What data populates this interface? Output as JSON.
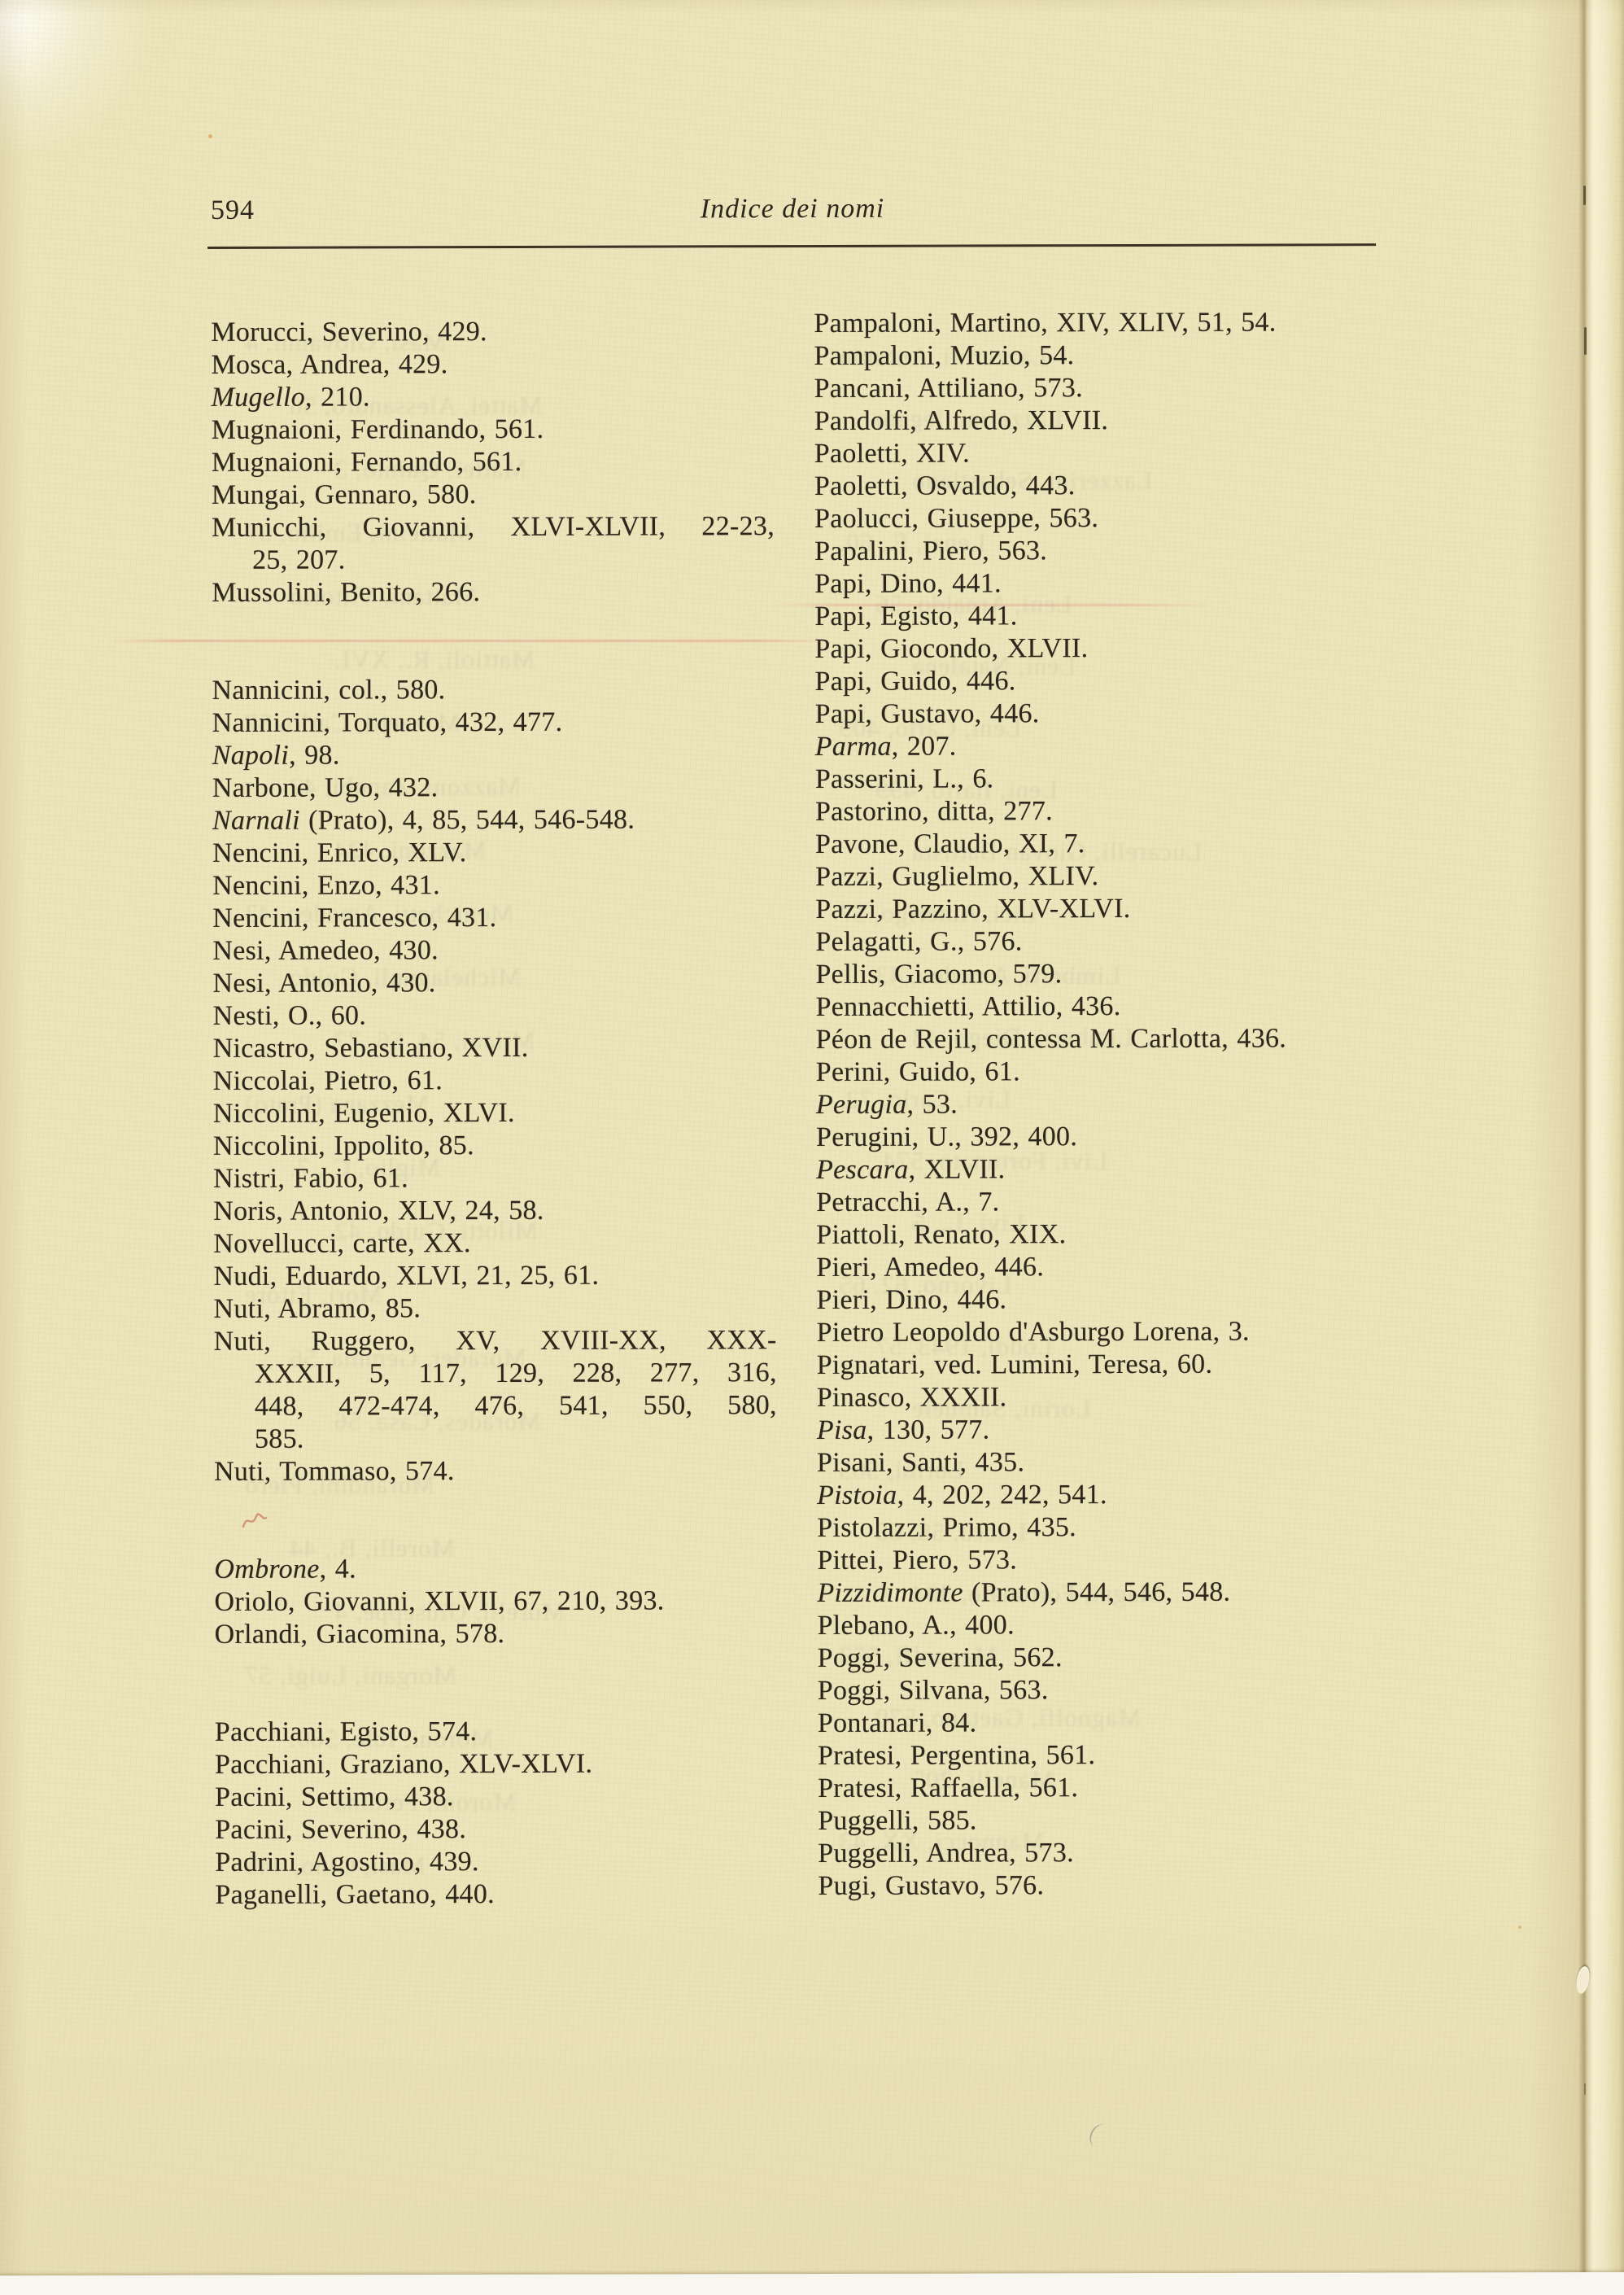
{
  "header": {
    "page_number": "594",
    "running_title": "Indice dei nomi"
  },
  "colors": {
    "paper": "#ece4ba",
    "ink": "#2a241a",
    "bleedthrough": "#8da089",
    "pink_scan_line": "#e1827d",
    "red_ink_mark": "#c4524a"
  },
  "index": {
    "left_groups": [
      [
        "Morucci, Severino, 429.",
        "Mosca, Andrea, 429.",
        {
          "lines": [
            {
              "e": "Mugello",
              "t": ", 210."
            }
          ]
        },
        "Mugnaioni, Ferdinando, 561.",
        "Mugnaioni, Fernando, 561.",
        "Mungai, Gennaro, 580.",
        {
          "lines": [
            {
              "t": "Municchi, Giovanni, XLVI-XLVII, 22-23,",
              "j": 1
            },
            {
              "t": "25, 207."
            }
          ]
        },
        "Mussolini, Benito, 266."
      ],
      [
        "Nannicini, col., 580.",
        "Nannicini, Torquato, 432, 477.",
        {
          "lines": [
            {
              "e": "Napoli",
              "t": ", 98."
            }
          ]
        },
        "Narbone, Ugo, 432.",
        {
          "lines": [
            {
              "e": "Narnali",
              "t": " (Prato), 4, 85, 544, 546-548."
            }
          ]
        },
        "Nencini, Enrico, XLV.",
        "Nencini, Enzo, 431.",
        "Nencini, Francesco, 431.",
        "Nesi, Amedeo, 430.",
        "Nesi, Antonio, 430.",
        "Nesti, O., 60.",
        "Nicastro, Sebastiano, XVII.",
        "Niccolai, Pietro, 61.",
        "Niccolini, Eugenio, XLVI.",
        "Niccolini, Ippolito, 85.",
        "Nistri, Fabio, 61.",
        "Noris, Antonio, XLV, 24, 58.",
        "Novellucci, carte, XX.",
        "Nudi, Eduardo, XLVI, 21, 25, 61.",
        "Nuti, Abramo, 85.",
        {
          "lines": [
            {
              "t": "Nuti, Ruggero, XV, XVIII-XX, XXX-",
              "j": 1
            },
            {
              "t": "XXXII, 5, 117, 129, 228, 277, 316,",
              "j": 1
            },
            {
              "t": "448, 472-474, 476, 541, 550, 580,",
              "j": 1
            },
            {
              "t": "585."
            }
          ]
        },
        "Nuti, Tommaso, 574."
      ],
      [
        {
          "lines": [
            {
              "e": "Ombrone",
              "t": ", 4."
            }
          ]
        },
        "Oriolo, Giovanni, XLVII, 67, 210, 393.",
        "Orlandi, Giacomina, 578."
      ],
      [
        "Pacchiani, Egisto, 574.",
        "Pacchiani, Graziano, XLV-XLVI.",
        "Pacini, Settimo, 438.",
        "Pacini, Severino, 438.",
        "Padrini, Agostino, 439.",
        "Paganelli, Gaetano, 440."
      ]
    ],
    "right_groups": [
      [
        "Pampaloni, Martino, XIV, XLIV, 51, 54.",
        "Pampaloni, Muzio, 54.",
        "Pancani, Attiliano, 573.",
        "Pandolfi, Alfredo, XLVII.",
        "Paoletti, XIV.",
        "Paoletti, Osvaldo, 443.",
        "Paolucci, Giuseppe, 563.",
        "Papalini, Piero, 563.",
        "Papi, Dino, 441.",
        "Papi, Egisto, 441.",
        "Papi, Giocondo, XLVII.",
        "Papi, Guido, 446.",
        "Papi, Gustavo, 446.",
        {
          "lines": [
            {
              "e": "Parma",
              "t": ", 207."
            }
          ]
        },
        "Passerini, L., 6.",
        "Pastorino, ditta, 277.",
        "Pavone, Claudio, XI, 7.",
        "Pazzi, Guglielmo, XLIV.",
        "Pazzi, Pazzino, XLV-XLVI.",
        "Pelagatti, G., 576.",
        "Pellis, Giacomo, 579.",
        "Pennacchietti, Attilio, 436.",
        "Péon de Rejil, contessa M. Carlotta, 436.",
        "Perini, Guido, 61.",
        {
          "lines": [
            {
              "e": "Perugia",
              "t": ", 53."
            }
          ]
        },
        "Perugini, U., 392, 400.",
        {
          "lines": [
            {
              "e": "Pescara",
              "t": ", XLVII."
            }
          ]
        },
        "Petracchi, A., 7.",
        "Piattoli, Renato, XIX.",
        "Pieri, Amedeo, 446.",
        "Pieri, Dino, 446.",
        "Pietro Leopoldo d'Asburgo Lorena, 3.",
        "Pignatari, ved. Lumini, Teresa, 60.",
        "Pinasco, XXXII.",
        {
          "lines": [
            {
              "e": "Pisa",
              "t": ", 130, 577."
            }
          ]
        },
        "Pisani, Santi, 435.",
        {
          "lines": [
            {
              "e": "Pistoia",
              "t": ", 4, 202, 242, 541."
            }
          ]
        },
        "Pistolazzi, Primo, 435.",
        "Pittei, Piero, 573.",
        {
          "lines": [
            {
              "e": "Pizzidimonte",
              "t": " (Prato), 544, 546, 548."
            }
          ]
        },
        "Plebano, A., 400.",
        "Poggi, Severina, 562.",
        "Poggi, Silvana, 563.",
        "Pontanari, 84.",
        "Pratesi, Pergentina, 561.",
        "Pratesi, Raffaella, 561.",
        "Puggelli, 585.",
        "Puggelli, Andrea, 573.",
        "Pugi, Gustavo, 576."
      ]
    ]
  },
  "bleedthrough": {
    "left": [
      "Masi, Giovanni, 4",
      "Mattei, Alessandro, 56",
      "Mattei, Quinto, 3",
      "Matteini, Emilio, 57",
      "Mattani, Vittorio",
      "Mattioli, R., XVI.",
      "Mazzetti, Carlo, 57",
      "Mazzoni, Zanobi, 42",
      "Mazzoni, 424",
      "Menichetti, Amedeo, 43",
      "Michelagnoli, Guido",
      "Milani, 54, 66, 77",
      "Mezzana (Prato)",
      "Miglio, C., 7.",
      "Milotti, Guido, 42",
      "Mori, Ettore",
      "Morader, Gemma, 56",
      "Morades, Casa, 56",
      "Morandini, Piero",
      "Morelli, B., 44",
      "Morelli, Giuseppe, 4",
      "Morgani, Luigi, 57",
      "Moroni, Iole, 560.",
      "Moroni, Ferdina",
      "Masi, Gino, 445"
    ],
    "right": [
      "Lazzerini, Antonio",
      "Lazzerini, legato",
      "Lazzerini, Sebastiano",
      "Lenzi, F., 60.",
      "Leni, Arnaldo, 56",
      "Leni, Natalena",
      "Leni, Carlo, 409",
      "Leni, Ilario, 499",
      "Lucarelli, Giovan Battista",
      "Lici, Amerigo, 57",
      "Limberti, Amedeo, 43",
      "Limberti, Diego, 43",
      "Livi, Carlo, 72.",
      "Livi, Fortunato, 574.",
      "Livi, L., 5",
      "Livorno, 62, 65",
      "Loddi, 1943, 57",
      "Lorini, Samuele",
      "Lorini, 565",
      "Lucca, 58, 65",
      "Magni, Fortunato, 304",
      "Magnolfi, 553",
      "Magnolfi, Gaetano, 570",
      "Manelli, 205",
      "Mannocci, XX, 43",
      "Martino, Antonio, 590",
      "Marini, Agata, 32",
      "Masi, Gina, 445"
    ]
  }
}
